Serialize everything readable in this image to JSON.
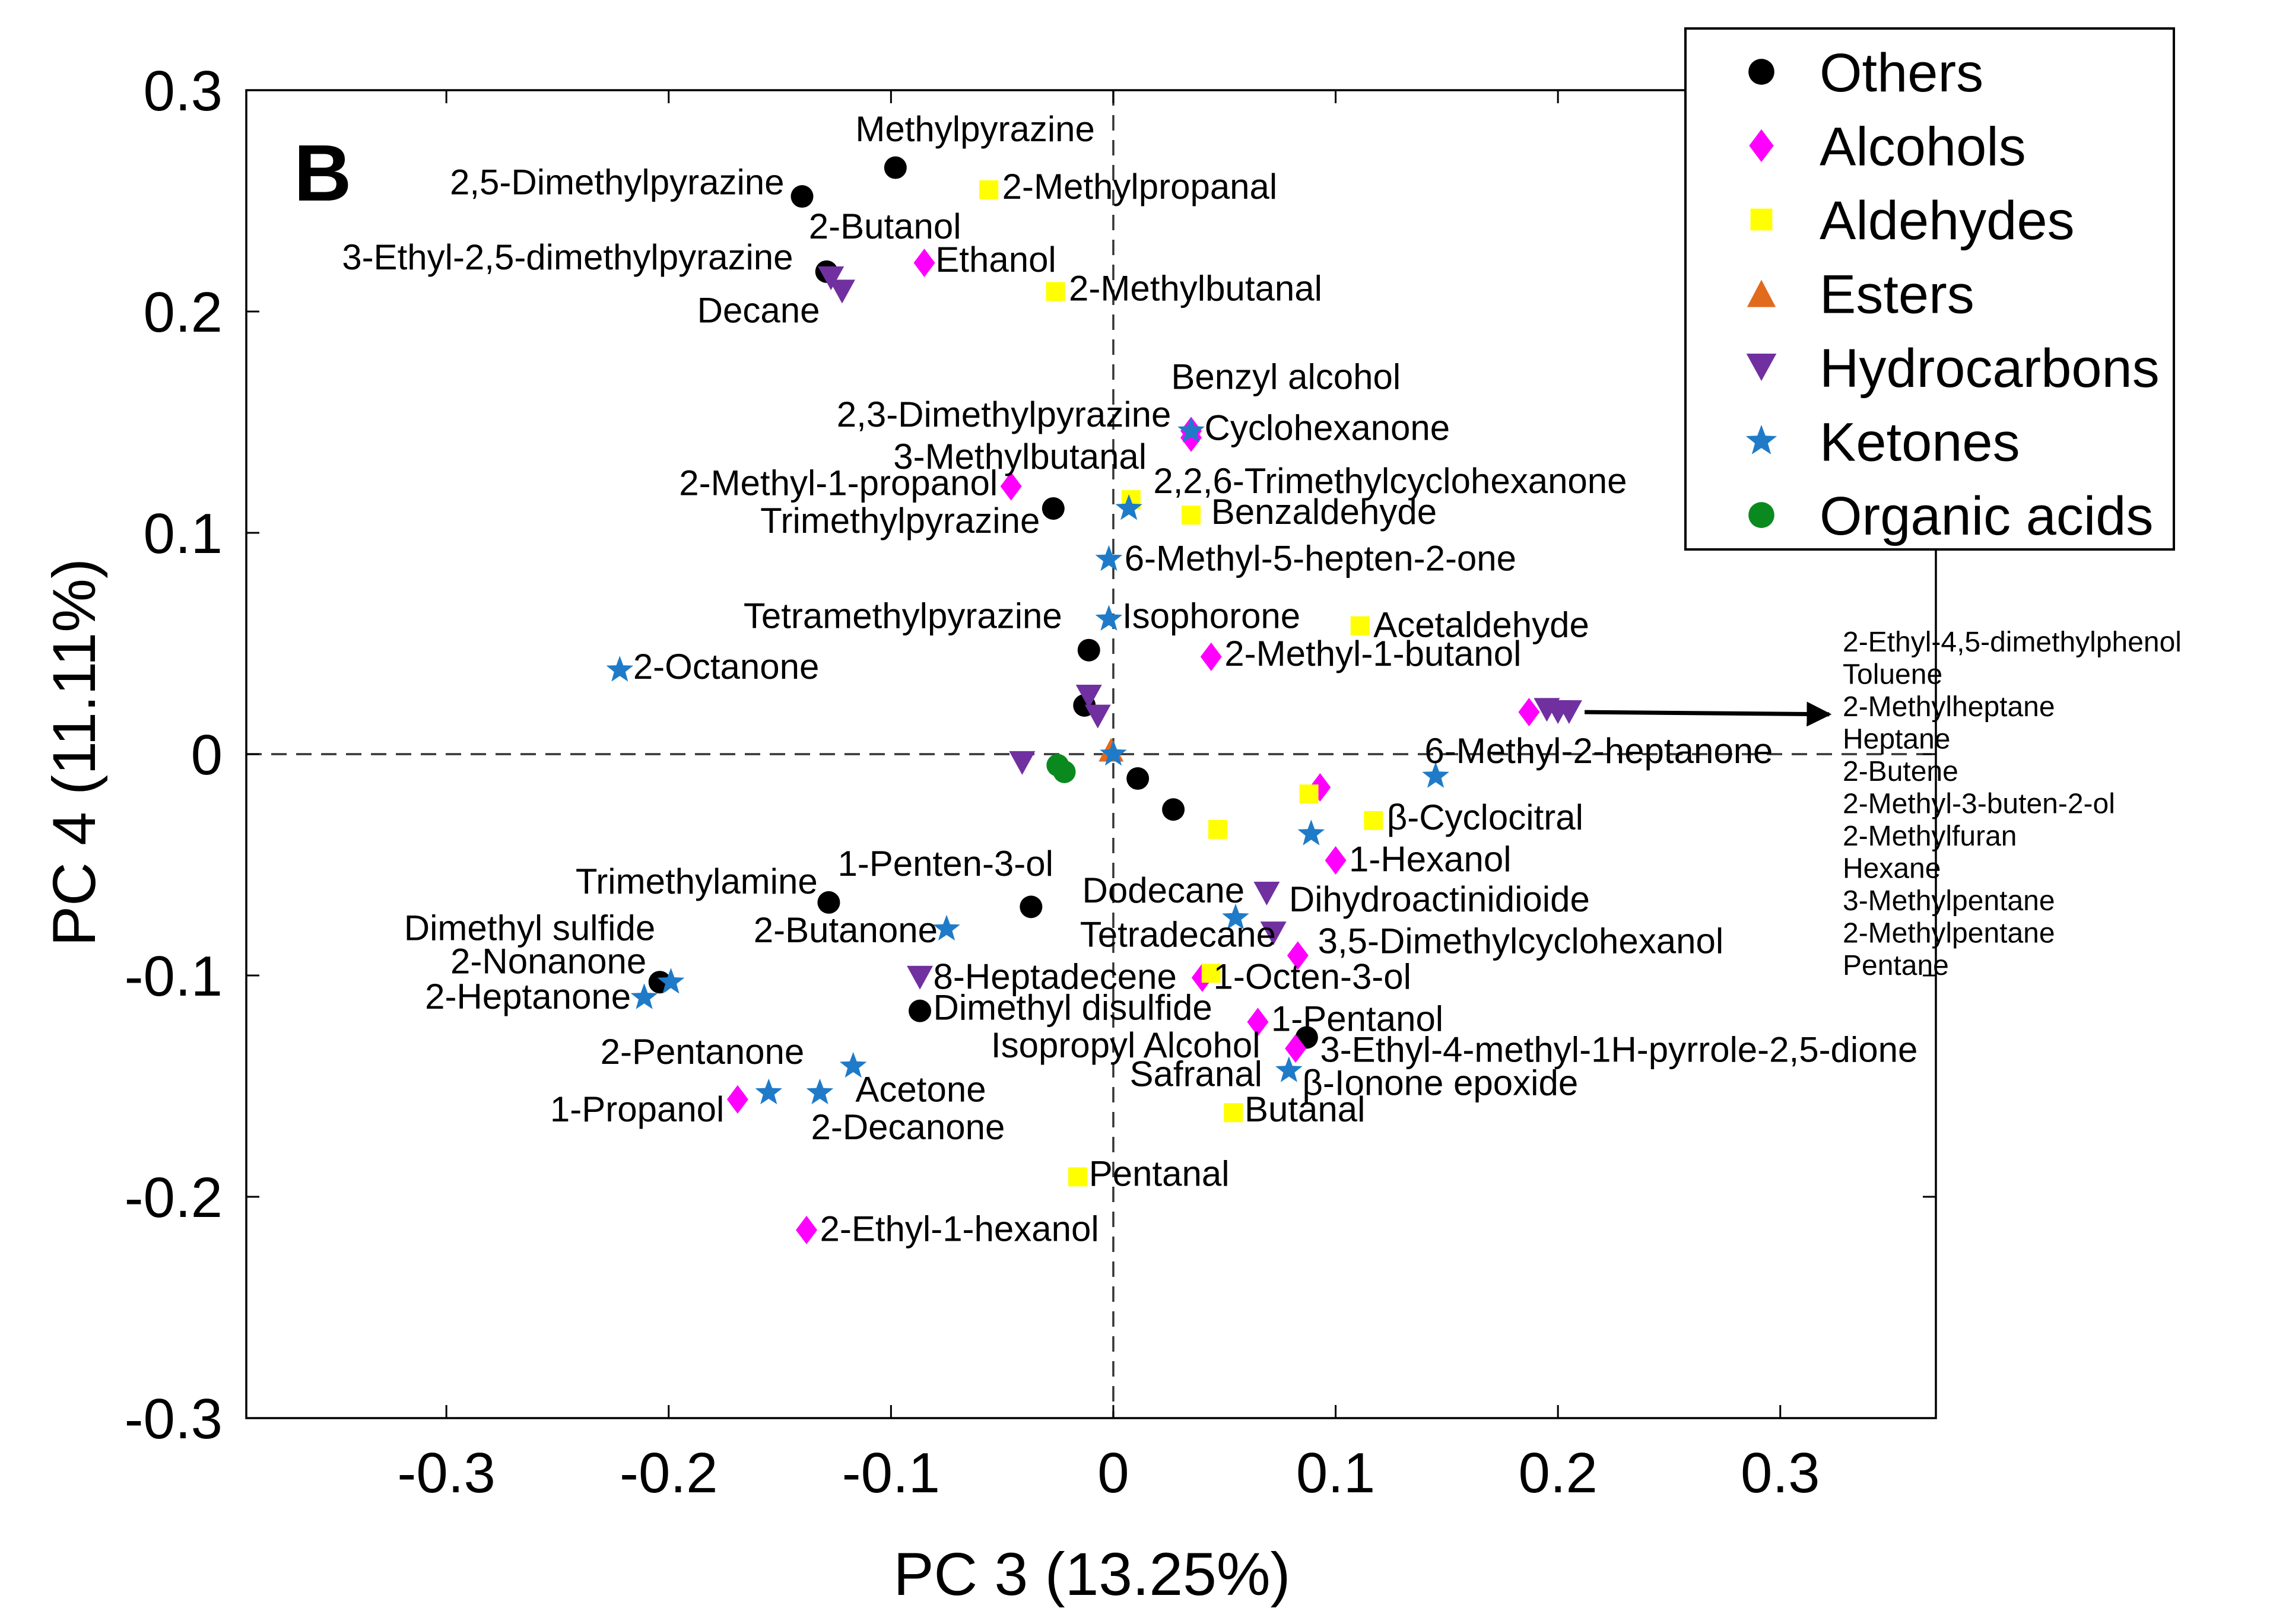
{
  "chart_data": {
    "type": "scatter",
    "panel_label": "B",
    "title": "",
    "xlabel": "PC 3 (13.25%)",
    "ylabel": "PC 4 (11.11%)",
    "xlim": [
      -0.39,
      0.37
    ],
    "ylim": [
      -0.3,
      0.3
    ],
    "xticks": [
      -0.3,
      -0.2,
      -0.1,
      0,
      0.1,
      0.2,
      0.3
    ],
    "xtick_labels": [
      "-0.3",
      "-0.2",
      "-0.1",
      "0",
      "0.1",
      "0.2",
      "0.3"
    ],
    "yticks": [
      -0.3,
      -0.2,
      -0.1,
      0,
      0.1,
      0.2,
      0.3
    ],
    "ytick_labels": [
      "-0.3",
      "-0.2",
      "-0.1",
      "0",
      "0.1",
      "0.2",
      "0.3"
    ],
    "grid": false,
    "zero_lines": "dashed",
    "legend_position": "top-right",
    "series": [
      {
        "name": "Others",
        "marker": "circle",
        "color": "#000000",
        "points": [
          [
            -0.14,
            0.252
          ],
          [
            -0.098,
            0.265
          ],
          [
            -0.129,
            0.218
          ],
          [
            -0.027,
            0.111
          ],
          [
            -0.011,
            0.047
          ],
          [
            -0.013,
            0.022
          ],
          [
            0.011,
            -0.011
          ],
          [
            0.027,
            -0.025
          ],
          [
            -0.128,
            -0.067
          ],
          [
            -0.037,
            -0.069
          ],
          [
            -0.204,
            -0.103
          ],
          [
            -0.087,
            -0.116
          ],
          [
            0.087,
            -0.128
          ]
        ]
      },
      {
        "name": "Alcohols",
        "marker": "diamond",
        "color": "#FF00FF",
        "points": [
          [
            -0.085,
            0.222
          ],
          [
            0.035,
            0.146
          ],
          [
            0.035,
            0.143
          ],
          [
            -0.046,
            0.121
          ],
          [
            0.044,
            0.044
          ],
          [
            0.187,
            0.019
          ],
          [
            0.093,
            -0.015
          ],
          [
            0.1,
            -0.048
          ],
          [
            0.083,
            -0.091
          ],
          [
            0.04,
            -0.101
          ],
          [
            0.065,
            -0.121
          ],
          [
            0.082,
            -0.133
          ],
          [
            -0.169,
            -0.156
          ],
          [
            -0.138,
            -0.215
          ]
        ]
      },
      {
        "name": "Aldehydes",
        "marker": "square",
        "color": "#FFFF00",
        "points": [
          [
            -0.056,
            0.255
          ],
          [
            -0.026,
            0.209
          ],
          [
            0.008,
            0.115
          ],
          [
            0.035,
            0.108
          ],
          [
            0.111,
            0.058
          ],
          [
            0.088,
            -0.018
          ],
          [
            0.117,
            -0.03
          ],
          [
            0.047,
            -0.034
          ],
          [
            0.044,
            -0.099
          ],
          [
            0.054,
            -0.162
          ],
          [
            -0.016,
            -0.191
          ]
        ]
      },
      {
        "name": "Esters",
        "marker": "triangle-up",
        "color": "#E26A1C",
        "points": [
          [
            -0.001,
            0.002
          ]
        ]
      },
      {
        "name": "Hydrocarbons",
        "marker": "triangle-down",
        "color": "#7030A0",
        "points": [
          [
            -0.127,
            0.215
          ],
          [
            -0.122,
            0.209
          ],
          [
            -0.011,
            0.026
          ],
          [
            -0.007,
            0.017
          ],
          [
            -0.041,
            -0.004
          ],
          [
            0.069,
            -0.063
          ],
          [
            0.072,
            -0.081
          ],
          [
            -0.087,
            -0.101
          ],
          [
            0.195,
            0.02
          ],
          [
            0.2,
            0.019
          ],
          [
            0.205,
            0.019
          ]
        ]
      },
      {
        "name": "Ketones",
        "marker": "star",
        "color": "#1F7BC8",
        "points": [
          [
            0.035,
            0.146
          ],
          [
            0.007,
            0.111
          ],
          [
            -0.002,
            0.088
          ],
          [
            -0.002,
            0.061
          ],
          [
            -0.222,
            0.038
          ],
          [
            0.145,
            -0.01
          ],
          [
            0.089,
            -0.036
          ],
          [
            0.055,
            -0.074
          ],
          [
            -0.075,
            -0.079
          ],
          [
            -0.199,
            -0.103
          ],
          [
            -0.211,
            -0.11
          ],
          [
            -0.117,
            -0.141
          ],
          [
            -0.155,
            -0.153
          ],
          [
            -0.132,
            -0.153
          ],
          [
            0.079,
            -0.143
          ],
          [
            0.0,
            0.0
          ]
        ]
      },
      {
        "name": "Organic acids",
        "marker": "circle",
        "color": "#0A8A1E",
        "points": [
          [
            -0.025,
            -0.005
          ],
          [
            -0.022,
            -0.008
          ]
        ]
      }
    ],
    "annotations": [
      {
        "text": "Methylpyrazine",
        "x": -0.116,
        "y": 0.277,
        "anchor": "start"
      },
      {
        "text": "2,5-Dimethylpyrazine",
        "x": -0.148,
        "y": 0.253,
        "anchor": "end"
      },
      {
        "text": "2-Methylpropanal",
        "x": -0.05,
        "y": 0.251,
        "anchor": "start"
      },
      {
        "text": "2-Butanol",
        "x": -0.137,
        "y": 0.233,
        "anchor": "start"
      },
      {
        "text": "3-Ethyl-2,5-dimethylpyrazine",
        "x": -0.144,
        "y": 0.219,
        "anchor": "end"
      },
      {
        "text": "Ethanol",
        "x": -0.08,
        "y": 0.218,
        "anchor": "start"
      },
      {
        "text": "Decane",
        "x": -0.132,
        "y": 0.195,
        "anchor": "end"
      },
      {
        "text": "2-Methylbutanal",
        "x": -0.02,
        "y": 0.205,
        "anchor": "start"
      },
      {
        "text": "Benzyl alcohol",
        "x": 0.026,
        "y": 0.165,
        "anchor": "start"
      },
      {
        "text": "2,3-Dimethylpyrazine",
        "x": 0.026,
        "y": 0.148,
        "anchor": "end"
      },
      {
        "text": "Cyclohexanone",
        "x": 0.041,
        "y": 0.142,
        "anchor": "start"
      },
      {
        "text": "3-Methylbutanal",
        "x": 0.015,
        "y": 0.129,
        "anchor": "end"
      },
      {
        "text": "2-Methyl-1-propanol",
        "x": -0.052,
        "y": 0.117,
        "anchor": "end"
      },
      {
        "text": "2,2,6-Trimethylcyclohexanone",
        "x": 0.018,
        "y": 0.118,
        "anchor": "start"
      },
      {
        "text": "Benzaldehyde",
        "x": 0.044,
        "y": 0.104,
        "anchor": "start"
      },
      {
        "text": "Trimethylpyrazine",
        "x": -0.033,
        "y": 0.1,
        "anchor": "end"
      },
      {
        "text": "6-Methyl-5-hepten-2-one",
        "x": 0.005,
        "y": 0.083,
        "anchor": "start"
      },
      {
        "text": "Tetramethylpyrazine",
        "x": -0.023,
        "y": 0.057,
        "anchor": "end"
      },
      {
        "text": "Isophorone",
        "x": 0.004,
        "y": 0.057,
        "anchor": "start"
      },
      {
        "text": "Acetaldehyde",
        "x": 0.117,
        "y": 0.053,
        "anchor": "start"
      },
      {
        "text": "2-Octanone",
        "x": -0.216,
        "y": 0.034,
        "anchor": "start"
      },
      {
        "text": "2-Methyl-1-butanol",
        "x": 0.05,
        "y": 0.04,
        "anchor": "start"
      },
      {
        "text": "6-Methyl-2-heptanone",
        "x": 0.14,
        "y": -0.004,
        "anchor": "start"
      },
      {
        "text": "β-Cyclocitral",
        "x": 0.123,
        "y": -0.034,
        "anchor": "start"
      },
      {
        "text": "1-Hexanol",
        "x": 0.106,
        "y": -0.053,
        "anchor": "start"
      },
      {
        "text": "Trimethylamine",
        "x": -0.133,
        "y": -0.063,
        "anchor": "end"
      },
      {
        "text": "1-Penten-3-ol",
        "x": -0.124,
        "y": -0.055,
        "anchor": "start"
      },
      {
        "text": "Dodecane",
        "x": -0.014,
        "y": -0.067,
        "anchor": "start"
      },
      {
        "text": "Dihydroactinidioide",
        "x": 0.079,
        "y": -0.071,
        "anchor": "start"
      },
      {
        "text": "Dimethyl sulfide",
        "x": -0.206,
        "y": -0.084,
        "anchor": "end"
      },
      {
        "text": "2-Butanone",
        "x": -0.079,
        "y": -0.085,
        "anchor": "end"
      },
      {
        "text": "Tetradecane",
        "x": -0.015,
        "y": -0.087,
        "anchor": "start"
      },
      {
        "text": "3,5-Dimethylcyclohexanol",
        "x": 0.092,
        "y": -0.09,
        "anchor": "start"
      },
      {
        "text": "2-Nonanone",
        "x": -0.21,
        "y": -0.099,
        "anchor": "end"
      },
      {
        "text": "8-Heptadecene",
        "x": -0.081,
        "y": -0.106,
        "anchor": "start"
      },
      {
        "text": "1-Octen-3-ol",
        "x": 0.045,
        "y": -0.106,
        "anchor": "start"
      },
      {
        "text": "2-Heptanone",
        "x": -0.217,
        "y": -0.115,
        "anchor": "end"
      },
      {
        "text": "Dimethyl disulfide",
        "x": -0.081,
        "y": -0.12,
        "anchor": "start"
      },
      {
        "text": "1-Pentanol",
        "x": 0.071,
        "y": -0.125,
        "anchor": "start"
      },
      {
        "text": "Isopropyl Alcohol",
        "x": -0.055,
        "y": -0.137,
        "anchor": "start"
      },
      {
        "text": "3-Ethyl-4-methyl-1H-pyrrole-2,5-dione",
        "x": 0.093,
        "y": -0.139,
        "anchor": "start"
      },
      {
        "text": "2-Pentanone",
        "x": -0.139,
        "y": -0.14,
        "anchor": "end"
      },
      {
        "text": "Safranal",
        "x": 0.067,
        "y": -0.15,
        "anchor": "end"
      },
      {
        "text": "Acetone",
        "x": -0.116,
        "y": -0.157,
        "anchor": "start"
      },
      {
        "text": "β-Ionone epoxide",
        "x": 0.085,
        "y": -0.154,
        "anchor": "start"
      },
      {
        "text": "1-Propanol",
        "x": -0.175,
        "y": -0.166,
        "anchor": "end"
      },
      {
        "text": "Butanal",
        "x": 0.059,
        "y": -0.166,
        "anchor": "start"
      },
      {
        "text": "2-Decanone",
        "x": -0.136,
        "y": -0.174,
        "anchor": "start"
      },
      {
        "text": "Pentanal",
        "x": -0.011,
        "y": -0.195,
        "anchor": "start"
      },
      {
        "text": "2-Ethyl-1-hexanol",
        "x": -0.132,
        "y": -0.22,
        "anchor": "start"
      }
    ],
    "cluster_label_list": [
      "2-Ethyl-4,5-dimethylphenol",
      "Toluene",
      "2-Methylheptane",
      "Heptane",
      "2-Butene",
      "2-Methyl-3-buten-2-ol",
      "2-Methylfuran",
      "Hexane",
      "3-Methylpentane",
      "2-Methylpentane",
      "Pentane"
    ],
    "cluster_arrow": {
      "from": [
        0.212,
        0.019
      ],
      "to": [
        0.322,
        0.018
      ]
    }
  }
}
